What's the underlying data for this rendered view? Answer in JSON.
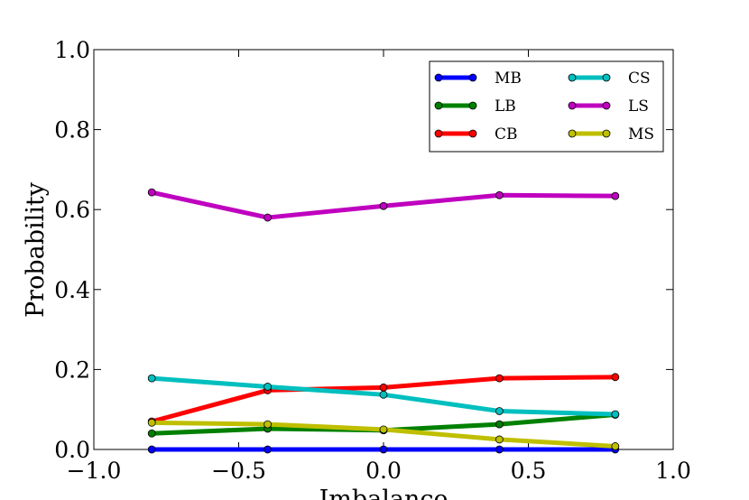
{
  "chart_data": {
    "type": "line",
    "title": "",
    "xlabel": "Imbalance",
    "ylabel": "Probability",
    "xlim": [
      -1.0,
      1.0
    ],
    "ylim": [
      0.0,
      1.0
    ],
    "xticks": [
      "−1.0",
      "−0.5",
      "0.0",
      "0.5",
      "1.0"
    ],
    "yticks": [
      "0.0",
      "0.2",
      "0.4",
      "0.6",
      "0.8",
      "1.0"
    ],
    "grid": false,
    "legend_placement": "top-right",
    "x": [
      -0.8,
      -0.4,
      0.0,
      0.4,
      0.8
    ],
    "series": [
      {
        "name": "MB",
        "color": "#0000ff",
        "values": [
          0.0,
          0.0,
          0.0,
          0.0,
          0.0
        ]
      },
      {
        "name": "LB",
        "color": "#008000",
        "values": [
          0.04,
          0.052,
          0.048,
          0.063,
          0.087
        ]
      },
      {
        "name": "CB",
        "color": "#ff0000",
        "values": [
          0.07,
          0.148,
          0.155,
          0.178,
          0.181
        ]
      },
      {
        "name": "CS",
        "color": "#00bfbf",
        "values": [
          0.178,
          0.157,
          0.137,
          0.096,
          0.088
        ]
      },
      {
        "name": "LS",
        "color": "#bf00bf",
        "values": [
          0.643,
          0.58,
          0.609,
          0.636,
          0.634
        ]
      },
      {
        "name": "MS",
        "color": "#bfbf00",
        "values": [
          0.067,
          0.063,
          0.05,
          0.025,
          0.008
        ]
      }
    ]
  }
}
